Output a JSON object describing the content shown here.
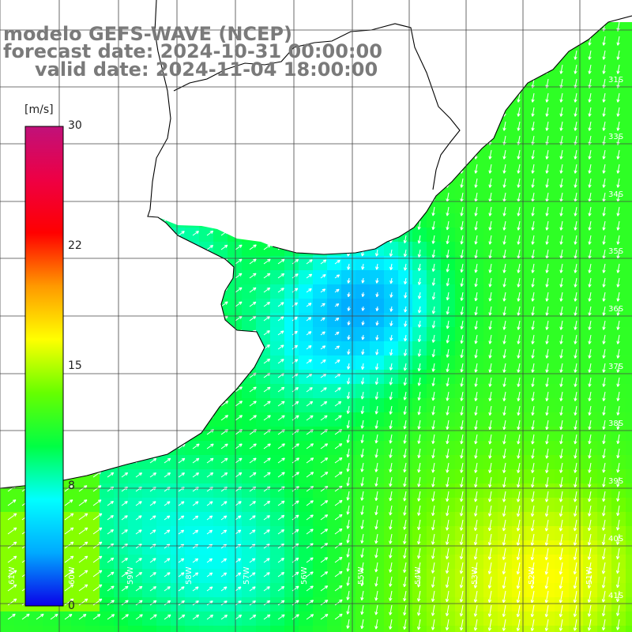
{
  "titles": {
    "line1": "modelo GEFS-WAVE (NCEP)",
    "line2": "forecast date: 2024-10-31 00:00:00",
    "line3": "valid date: 2024-11-04 18:00:00"
  },
  "colorbar": {
    "unit": "[m/s]",
    "min": 0,
    "max": 30,
    "ticks": [
      "30",
      "22",
      "15",
      "8",
      "0"
    ],
    "tick_values": [
      30,
      22,
      15,
      8,
      0
    ],
    "colors": [
      "#0a00e8",
      "#00aaff",
      "#00ffff",
      "#00ff44",
      "#66ff00",
      "#ffff00",
      "#ff9900",
      "#ff0000",
      "#ee0044",
      "#c0117a"
    ]
  },
  "map_labels": {
    "lat": [
      "31S",
      "33S",
      "34S",
      "35S",
      "36S",
      "37S",
      "38S",
      "39S",
      "40S",
      "41S"
    ],
    "lon": [
      "61W",
      "60W",
      "59W",
      "58W",
      "57W",
      "56W",
      "55W",
      "54W",
      "53W",
      "52W",
      "51W"
    ]
  },
  "colors": {
    "land": "#ffffff",
    "coast": "#000000",
    "grid": "#444444",
    "arrows": "#ffffff",
    "title_text": "#7a7a7a"
  }
}
